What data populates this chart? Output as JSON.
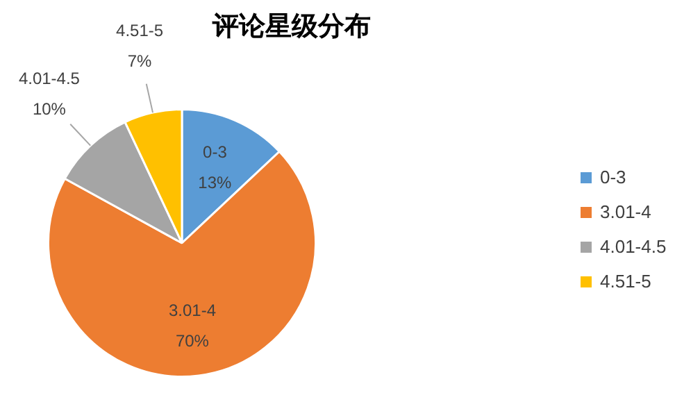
{
  "chart_data": {
    "type": "pie",
    "title": "评论星级分布",
    "categories": [
      "0-3",
      "3.01-4",
      "4.01-4.5",
      "4.51-5"
    ],
    "values": [
      13,
      70,
      10,
      7
    ],
    "value_labels": [
      "13%",
      "70%",
      "10%",
      "7%"
    ],
    "colors": [
      "#5b9bd5",
      "#ed7d31",
      "#a5a5a5",
      "#ffc000"
    ],
    "legend": "right"
  }
}
